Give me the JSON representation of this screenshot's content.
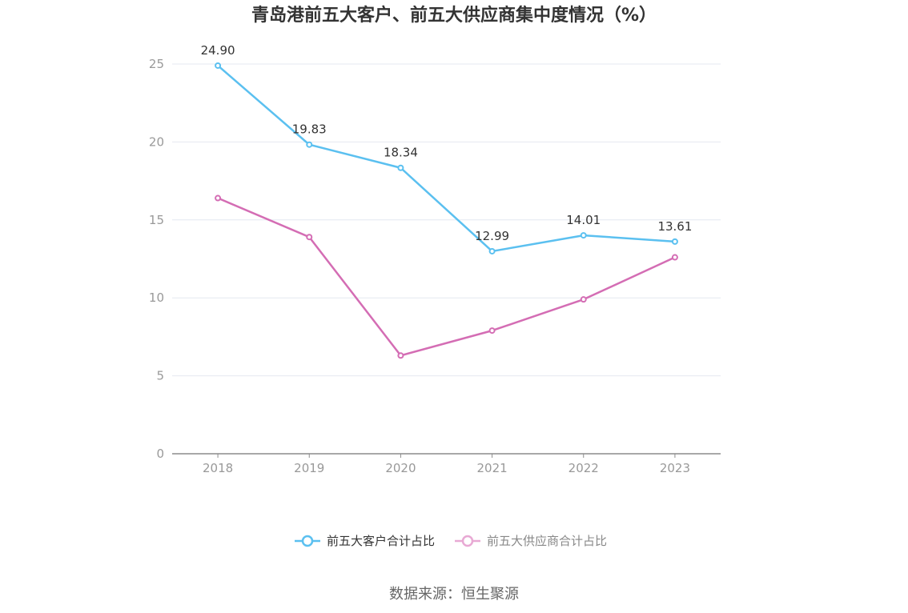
{
  "chart_data": {
    "type": "line",
    "title": "青岛港前五大客户、前五大供应商集中度情况（%）",
    "categories": [
      "2018",
      "2019",
      "2020",
      "2021",
      "2022",
      "2023"
    ],
    "ylim": [
      0,
      25
    ],
    "yticks": [
      0,
      5,
      10,
      15,
      20,
      25
    ],
    "grid": true,
    "legend_position": "bottom",
    "series": [
      {
        "name": "前五大客户合计占比",
        "color": "#5bc0f0",
        "values": [
          24.9,
          19.83,
          18.34,
          12.99,
          14.01,
          13.61
        ],
        "labels": [
          "24.90",
          "19.83",
          "18.34",
          "12.99",
          "14.01",
          "13.61"
        ]
      },
      {
        "name": "前五大供应商合计占比",
        "color": "#d46db4",
        "legend_color": "#e8a9d4",
        "values": [
          16.4,
          13.9,
          6.3,
          7.9,
          9.9,
          12.6
        ],
        "labels": []
      }
    ]
  },
  "source": "数据来源：恒生聚源"
}
